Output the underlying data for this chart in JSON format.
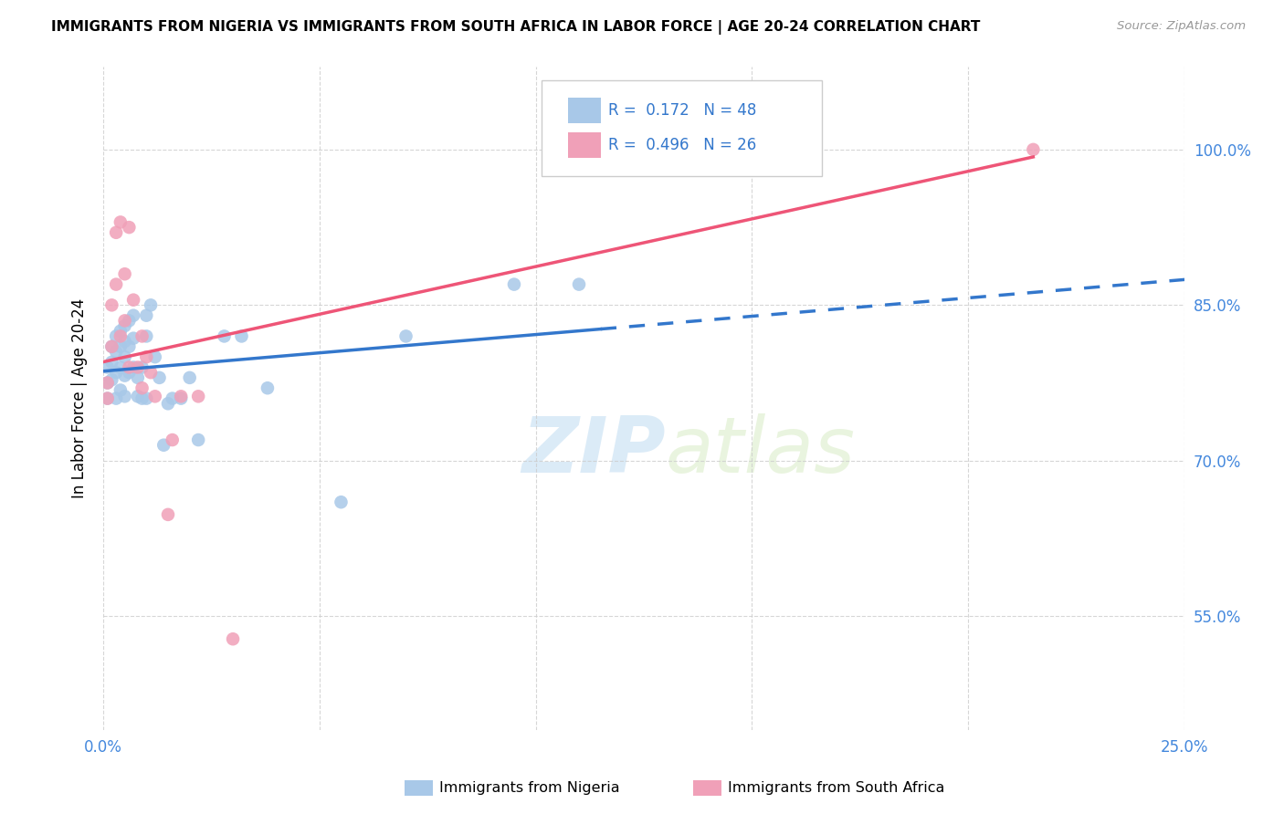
{
  "title": "IMMIGRANTS FROM NIGERIA VS IMMIGRANTS FROM SOUTH AFRICA IN LABOR FORCE | AGE 20-24 CORRELATION CHART",
  "source": "Source: ZipAtlas.com",
  "ylabel": "In Labor Force | Age 20-24",
  "xmin": 0.0,
  "xmax": 0.25,
  "ymin": 0.44,
  "ymax": 1.08,
  "yticks": [
    0.55,
    0.7,
    0.85,
    1.0
  ],
  "ytick_labels": [
    "55.0%",
    "70.0%",
    "85.0%",
    "100.0%"
  ],
  "legend_nigeria_R": "0.172",
  "legend_nigeria_N": "48",
  "legend_sa_R": "0.496",
  "legend_sa_N": "26",
  "watermark_zip": "ZIP",
  "watermark_atlas": "atlas",
  "color_nigeria": "#a8c8e8",
  "color_sa": "#f0a0b8",
  "color_nigeria_line": "#3377cc",
  "color_sa_line": "#ee5577",
  "nigeria_x": [
    0.001,
    0.001,
    0.001,
    0.002,
    0.002,
    0.002,
    0.003,
    0.003,
    0.003,
    0.003,
    0.004,
    0.004,
    0.004,
    0.004,
    0.005,
    0.005,
    0.005,
    0.005,
    0.005,
    0.006,
    0.006,
    0.006,
    0.007,
    0.007,
    0.007,
    0.008,
    0.008,
    0.009,
    0.009,
    0.01,
    0.01,
    0.01,
    0.011,
    0.012,
    0.013,
    0.014,
    0.015,
    0.016,
    0.018,
    0.02,
    0.022,
    0.028,
    0.032,
    0.038,
    0.055,
    0.07,
    0.095,
    0.11
  ],
  "nigeria_y": [
    0.79,
    0.775,
    0.76,
    0.81,
    0.795,
    0.778,
    0.82,
    0.805,
    0.785,
    0.76,
    0.825,
    0.81,
    0.79,
    0.768,
    0.83,
    0.815,
    0.8,
    0.782,
    0.762,
    0.835,
    0.81,
    0.785,
    0.84,
    0.818,
    0.79,
    0.78,
    0.762,
    0.79,
    0.76,
    0.84,
    0.82,
    0.76,
    0.85,
    0.8,
    0.78,
    0.715,
    0.755,
    0.76,
    0.76,
    0.78,
    0.72,
    0.82,
    0.82,
    0.77,
    0.66,
    0.82,
    0.87,
    0.87
  ],
  "sa_x": [
    0.001,
    0.001,
    0.002,
    0.002,
    0.003,
    0.003,
    0.004,
    0.004,
    0.005,
    0.005,
    0.006,
    0.006,
    0.007,
    0.008,
    0.009,
    0.009,
    0.01,
    0.011,
    0.012,
    0.015,
    0.016,
    0.018,
    0.022,
    0.03,
    0.11,
    0.215
  ],
  "sa_y": [
    0.775,
    0.76,
    0.85,
    0.81,
    0.92,
    0.87,
    0.93,
    0.82,
    0.88,
    0.835,
    0.925,
    0.79,
    0.855,
    0.79,
    0.77,
    0.82,
    0.8,
    0.785,
    0.762,
    0.648,
    0.72,
    0.762,
    0.762,
    0.528,
    1.0,
    1.0
  ],
  "nigeria_line_x0": 0.0,
  "nigeria_line_x1": 0.115,
  "nigeria_line_x2": 0.25,
  "nigeria_line_y0": 0.772,
  "nigeria_line_y1": 0.84,
  "nigeria_line_y2": 0.88,
  "sa_line_x0": 0.0,
  "sa_line_x1": 0.215,
  "sa_line_y0": 0.73,
  "sa_line_y1": 1.003
}
